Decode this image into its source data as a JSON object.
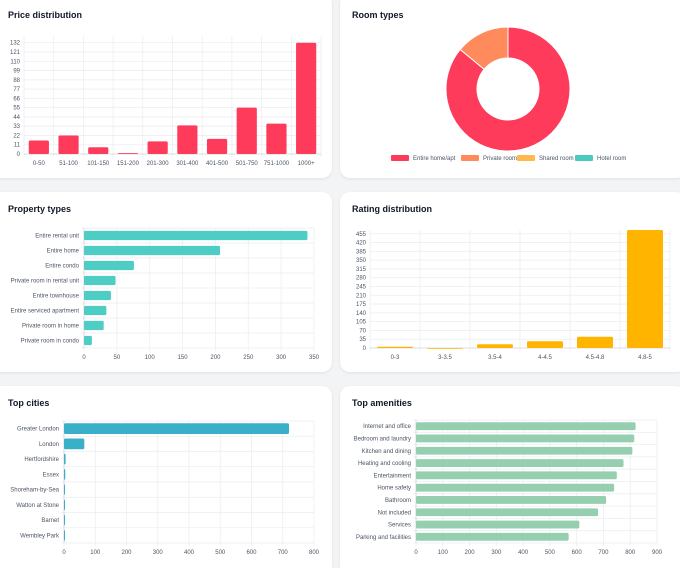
{
  "cards": {
    "price": {
      "title": "Price distribution"
    },
    "room": {
      "title": "Room types"
    },
    "property": {
      "title": "Property types"
    },
    "rating": {
      "title": "Rating distribution"
    },
    "cities": {
      "title": "Top cities"
    },
    "amenities": {
      "title": "Top amenities"
    }
  },
  "chart_data": [
    {
      "id": "price",
      "type": "bar",
      "title": "Price distribution",
      "categories": [
        "0-50",
        "51-100",
        "101-150",
        "151-200",
        "201-300",
        "301-400",
        "401-500",
        "501-750",
        "751-1000",
        "1000+"
      ],
      "values": [
        16,
        22,
        8,
        1,
        15,
        34,
        18,
        55,
        36,
        132
      ],
      "ylim": [
        0,
        140
      ],
      "yticks": [
        "0",
        "11",
        "22",
        "33",
        "44",
        "55",
        "66",
        "77",
        "88",
        "99",
        "110",
        "121",
        "132"
      ],
      "color": "#ff3b5c",
      "grid": true
    },
    {
      "id": "room",
      "type": "pie",
      "title": "Room types",
      "labels": [
        "Entire home/apt",
        "Private room",
        "Shared room",
        "Hotel room"
      ],
      "values": [
        86,
        14,
        0,
        0
      ],
      "colors": [
        "#ff3b5c",
        "#ff8a5c",
        "#ffb84d",
        "#4dc9c0"
      ],
      "legend": "bottom"
    },
    {
      "id": "property",
      "type": "bar",
      "orientation": "horizontal",
      "title": "Property types",
      "categories": [
        "Entire rental unit",
        "Entire home",
        "Entire condo",
        "Private room in rental unit",
        "Entire townhouse",
        "Entire serviced apartment",
        "Private room in home",
        "Private room in condo"
      ],
      "values": [
        340,
        207,
        76,
        48,
        41,
        34,
        30,
        12
      ],
      "xlim": [
        0,
        350
      ],
      "xticks": [
        "0",
        "50",
        "100",
        "150",
        "200",
        "250",
        "300",
        "350"
      ],
      "color": "#4ecdc4",
      "grid": true
    },
    {
      "id": "rating",
      "type": "bar",
      "title": "Rating distribution",
      "categories": [
        "0-3",
        "3-3.5",
        "3.5-4",
        "4-4.5",
        "4.5-4.8",
        "4.8-5"
      ],
      "values": [
        5,
        0,
        15,
        27,
        45,
        470
      ],
      "ylim": [
        0,
        470
      ],
      "yticks": [
        "0",
        "35",
        "70",
        "105",
        "140",
        "175",
        "210",
        "245",
        "280",
        "315",
        "350",
        "385",
        "420",
        "455"
      ],
      "color": "#ffb400",
      "grid": true
    },
    {
      "id": "cities",
      "type": "bar",
      "orientation": "horizontal",
      "title": "Top cities",
      "categories": [
        "Greater London",
        "London",
        "Hertfordshire",
        "Essex",
        "Shoreham-by-Sea",
        "Watton at Stone",
        "Barnet",
        "Wembley Park"
      ],
      "values": [
        720,
        65,
        5,
        4,
        2,
        1,
        1,
        1
      ],
      "xlim": [
        0,
        800
      ],
      "xticks": [
        "0",
        "100",
        "200",
        "300",
        "400",
        "500",
        "600",
        "700",
        "800"
      ],
      "color": "#3ab0c8",
      "grid": true
    },
    {
      "id": "amenities",
      "type": "bar",
      "orientation": "horizontal",
      "title": "Top amenities",
      "categories": [
        "Internet and office",
        "Bedroom and laundry",
        "Kitchen and dining",
        "Heating and cooling",
        "Entertainment",
        "Home safety",
        "Bathroom",
        "Not included",
        "Services",
        "Parking and facilities"
      ],
      "values": [
        820,
        815,
        808,
        775,
        750,
        740,
        710,
        680,
        610,
        570
      ],
      "xlim": [
        0,
        900
      ],
      "xticks": [
        "0",
        "100",
        "200",
        "300",
        "400",
        "500",
        "600",
        "700",
        "800",
        "900"
      ],
      "color": "#96cfb0",
      "grid": true
    }
  ]
}
